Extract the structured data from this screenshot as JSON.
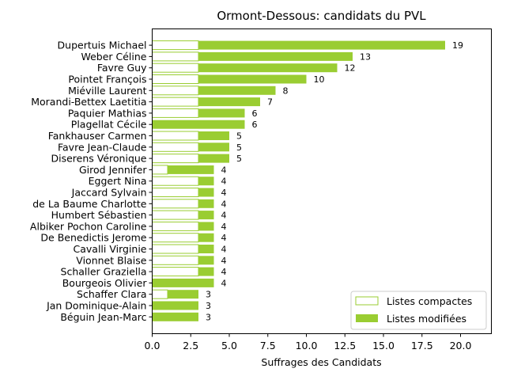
{
  "chart_data": {
    "type": "bar",
    "orientation": "horizontal",
    "stacked": true,
    "title": "Ormont-Dessous: candidats du PVL",
    "xlabel": "Suffrages des Candidats",
    "ylabel": "",
    "xlim": [
      0,
      22
    ],
    "xticks": [
      "0.0",
      "2.5",
      "5.0",
      "7.5",
      "10.0",
      "12.5",
      "15.0",
      "17.5",
      "20.0"
    ],
    "legend_position": "bottom-right",
    "grid": false,
    "colors": {
      "compact": "#9acd32",
      "modified": "#9acd32",
      "compact_fill": "#ffffff"
    },
    "series": [
      {
        "name": "Listes compactes",
        "values": [
          3,
          3,
          3,
          3,
          3,
          3,
          3,
          0,
          3,
          3,
          3,
          1,
          3,
          3,
          3,
          3,
          3,
          3,
          3,
          3,
          3,
          0,
          1,
          0,
          0
        ]
      },
      {
        "name": "Listes modifiées",
        "values": [
          16,
          10,
          9,
          7,
          5,
          4,
          3,
          6,
          2,
          2,
          2,
          3,
          1,
          1,
          1,
          1,
          1,
          1,
          1,
          1,
          1,
          4,
          2,
          3,
          3
        ]
      }
    ],
    "categories": [
      "Dupertuis Michael",
      "Weber Céline",
      "Favre Guy",
      "Pointet François",
      "Miéville Laurent",
      "Morandi-Bettex Laetitia",
      "Paquier Mathias",
      "Plagellat Cécile",
      "Fankhauser Carmen",
      "Favre Jean-Claude",
      "Diserens Véronique",
      "Girod Jennifer",
      "Eggert Nina",
      "Jaccard Sylvain",
      "de La Baume Charlotte",
      "Humbert Sébastien",
      "Albiker Pochon Caroline",
      "De Benedictis Jerome",
      "Cavalli Virginie",
      "Vionnet Blaise",
      "Schaller Graziella",
      "Bourgeois Olivier",
      "Schaffer Clara",
      "Jan Dominique-Alain",
      "Béguin Jean-Marc"
    ],
    "totals": [
      19,
      13,
      12,
      10,
      8,
      7,
      6,
      6,
      5,
      5,
      5,
      4,
      4,
      4,
      4,
      4,
      4,
      4,
      4,
      4,
      4,
      4,
      3,
      3,
      3
    ]
  }
}
